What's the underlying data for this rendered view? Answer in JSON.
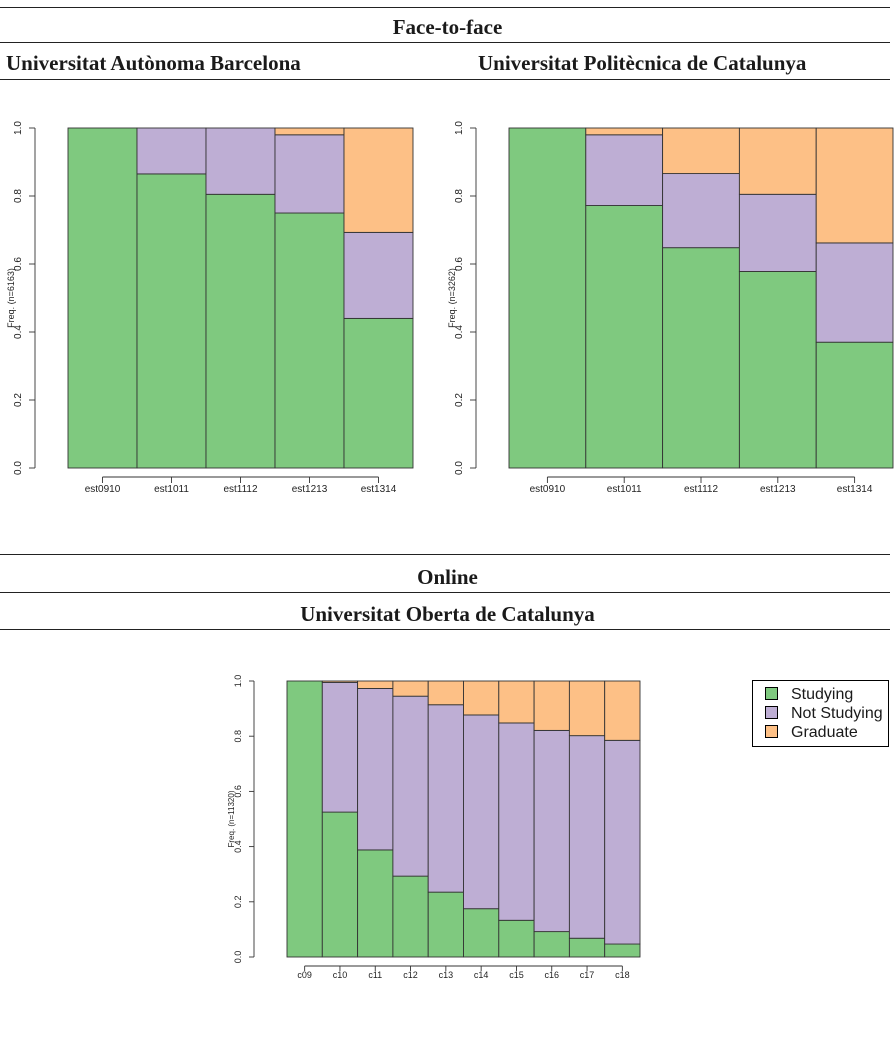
{
  "headers": {
    "face_to_face": "Face-to-face",
    "uab": "Universitat Autònoma Barcelona",
    "upc": "Universitat Politècnica de Catalunya",
    "online": "Online",
    "uoc": "Universitat Oberta de Catalunya"
  },
  "colors": {
    "studying": "#7fc97f",
    "not_studying": "#beaed4",
    "graduate": "#fdc086"
  },
  "legend": {
    "placement": "right",
    "items": [
      "Studying",
      "Not Studying",
      "Graduate"
    ]
  },
  "chart_data": [
    {
      "type": "bar",
      "stacked": true,
      "title": "Universitat Autònoma Barcelona",
      "ylabel": "Freq. (n=6163)",
      "ylim": [
        0,
        1
      ],
      "yticks": [
        "0.0",
        "0.2",
        "0.4",
        "0.6",
        "0.8",
        "1.0"
      ],
      "categories": [
        "est0910",
        "est1011",
        "est1112",
        "est1213",
        "est1314"
      ],
      "series": [
        {
          "key": "studying",
          "values": [
            1.0,
            0.865,
            0.805,
            0.75,
            0.44
          ]
        },
        {
          "key": "not_studying",
          "values": [
            0.0,
            0.135,
            0.195,
            0.23,
            0.253
          ]
        },
        {
          "key": "graduate",
          "values": [
            0.0,
            0.0,
            0.0,
            0.02,
            0.307
          ]
        }
      ]
    },
    {
      "type": "bar",
      "stacked": true,
      "title": "Universitat Politècnica de Catalunya",
      "ylabel": "Freq. (n=3262)",
      "ylim": [
        0,
        1
      ],
      "yticks": [
        "0.0",
        "0.2",
        "0.4",
        "0.6",
        "0.8",
        "1.0"
      ],
      "categories": [
        "est0910",
        "est1011",
        "est1112",
        "est1213",
        "est1314"
      ],
      "series": [
        {
          "key": "studying",
          "values": [
            1.0,
            0.772,
            0.648,
            0.578,
            0.37
          ]
        },
        {
          "key": "not_studying",
          "values": [
            0.0,
            0.208,
            0.218,
            0.227,
            0.292
          ]
        },
        {
          "key": "graduate",
          "values": [
            0.0,
            0.02,
            0.134,
            0.195,
            0.338
          ]
        }
      ]
    },
    {
      "type": "bar",
      "stacked": true,
      "title": "Universitat Oberta de Catalunya",
      "ylabel": "Freq. (n=11320)",
      "ylim": [
        0,
        1
      ],
      "yticks": [
        "0.0",
        "0.2",
        "0.4",
        "0.6",
        "0.8",
        "1.0"
      ],
      "categories": [
        "c09",
        "c10",
        "c11",
        "c12",
        "c13",
        "c14",
        "c15",
        "c16",
        "c17",
        "c18"
      ],
      "series": [
        {
          "key": "studying",
          "values": [
            1.0,
            0.525,
            0.388,
            0.293,
            0.235,
            0.175,
            0.133,
            0.092,
            0.068,
            0.047
          ]
        },
        {
          "key": "not_studying",
          "values": [
            0.0,
            0.47,
            0.585,
            0.652,
            0.679,
            0.702,
            0.715,
            0.729,
            0.734,
            0.738
          ]
        },
        {
          "key": "graduate",
          "values": [
            0.0,
            0.005,
            0.027,
            0.055,
            0.086,
            0.123,
            0.152,
            0.179,
            0.198,
            0.215
          ]
        }
      ]
    }
  ]
}
